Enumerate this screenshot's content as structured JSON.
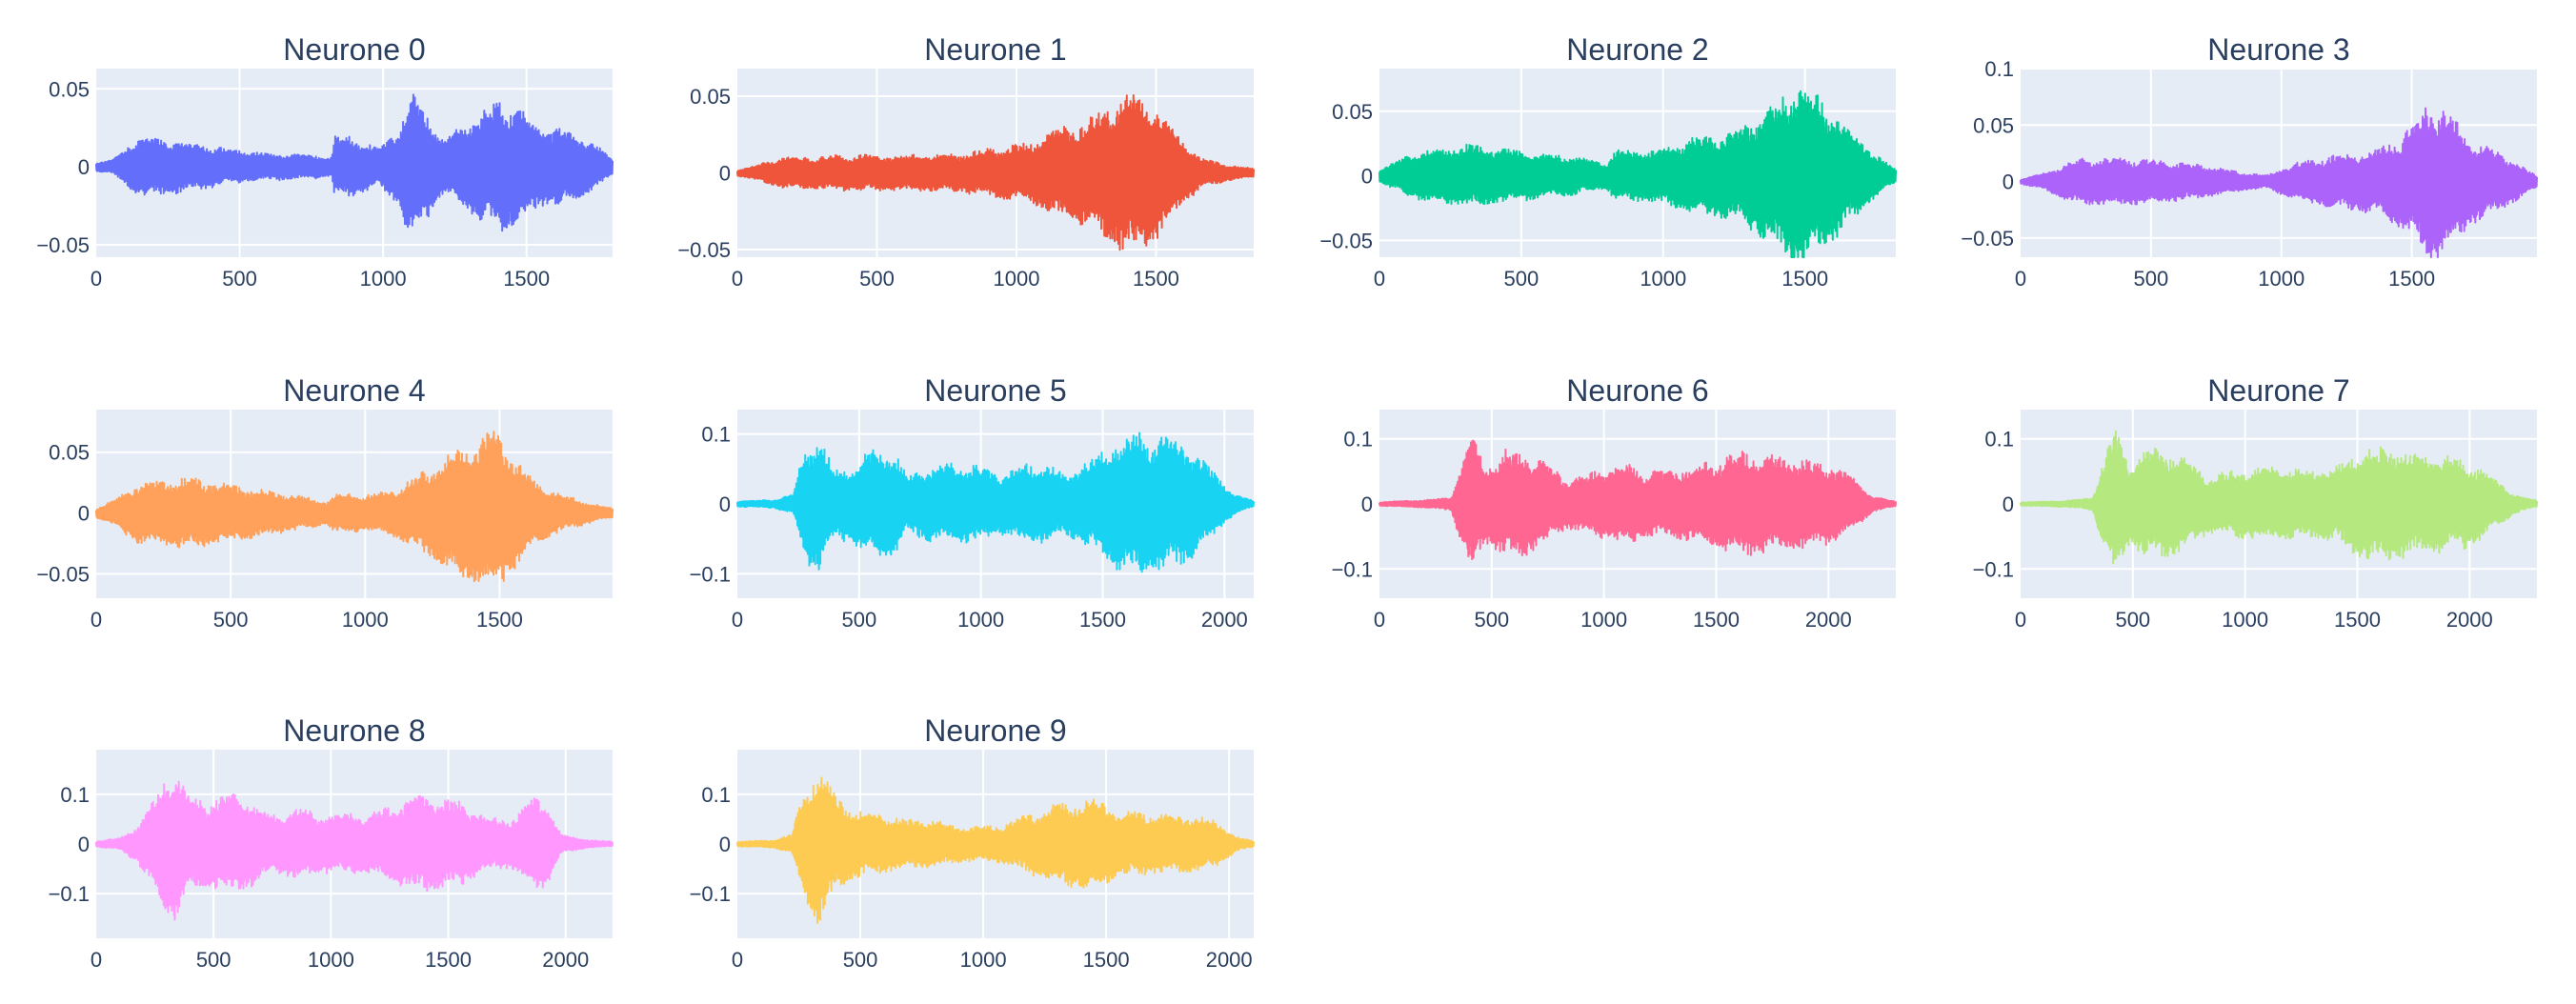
{
  "chart_data": [
    {
      "type": "line",
      "title": "Neurone 0",
      "color": "#636efa",
      "xlim": [
        0,
        1800
      ],
      "ylim": [
        -0.058,
        0.063
      ],
      "xticks": [
        0,
        500,
        1000,
        1500
      ],
      "xtick_labels": [
        "0",
        "500",
        "1000",
        "1500"
      ],
      "yticks": [
        -0.05,
        0,
        0.05
      ],
      "ytick_labels": [
        "−0.05",
        "0",
        "0.05"
      ],
      "segments": [
        [
          0,
          0.003
        ],
        [
          50,
          0.004
        ],
        [
          150,
          0.02
        ],
        [
          300,
          0.017
        ],
        [
          450,
          0.012
        ],
        [
          600,
          0.009
        ],
        [
          750,
          0.008
        ],
        [
          820,
          0.006
        ],
        [
          830,
          0.02
        ],
        [
          900,
          0.02
        ],
        [
          980,
          0.012
        ],
        [
          1050,
          0.025
        ],
        [
          1100,
          0.05
        ],
        [
          1150,
          0.035
        ],
        [
          1210,
          0.018
        ],
        [
          1260,
          0.025
        ],
        [
          1320,
          0.033
        ],
        [
          1400,
          0.044
        ],
        [
          1460,
          0.04
        ],
        [
          1540,
          0.028
        ],
        [
          1620,
          0.025
        ],
        [
          1700,
          0.02
        ],
        [
          1760,
          0.012
        ],
        [
          1800,
          0.005
        ]
      ]
    },
    {
      "type": "line",
      "title": "Neurone 1",
      "color": "#ef553b",
      "xlim": [
        0,
        1850
      ],
      "ylim": [
        -0.055,
        0.068
      ],
      "xticks": [
        0,
        500,
        1000,
        1500
      ],
      "xtick_labels": [
        "0",
        "500",
        "1000",
        "1500"
      ],
      "yticks": [
        -0.05,
        0,
        0.05
      ],
      "ytick_labels": [
        "−0.05",
        "0",
        "0.05"
      ],
      "segments": [
        [
          0,
          0.002
        ],
        [
          50,
          0.004
        ],
        [
          150,
          0.01
        ],
        [
          400,
          0.012
        ],
        [
          700,
          0.012
        ],
        [
          800,
          0.013
        ],
        [
          900,
          0.016
        ],
        [
          1050,
          0.02
        ],
        [
          1150,
          0.03
        ],
        [
          1260,
          0.036
        ],
        [
          1360,
          0.05
        ],
        [
          1420,
          0.055
        ],
        [
          1500,
          0.045
        ],
        [
          1580,
          0.025
        ],
        [
          1660,
          0.01
        ],
        [
          1760,
          0.005
        ],
        [
          1850,
          0.003
        ]
      ]
    },
    {
      "type": "line",
      "title": "Neurone 2",
      "color": "#00cc96",
      "xlim": [
        0,
        1820
      ],
      "ylim": [
        -0.063,
        0.083
      ],
      "xticks": [
        0,
        500,
        1000,
        1500
      ],
      "xtick_labels": [
        "0",
        "500",
        "1000",
        "1500"
      ],
      "yticks": [
        -0.05,
        0,
        0.05
      ],
      "ytick_labels": [
        "−0.05",
        "0",
        "0.05"
      ],
      "segments": [
        [
          0,
          0.005
        ],
        [
          60,
          0.012
        ],
        [
          150,
          0.02
        ],
        [
          300,
          0.025
        ],
        [
          500,
          0.02
        ],
        [
          700,
          0.015
        ],
        [
          800,
          0.01
        ],
        [
          830,
          0.02
        ],
        [
          950,
          0.02
        ],
        [
          1100,
          0.03
        ],
        [
          1250,
          0.035
        ],
        [
          1350,
          0.05
        ],
        [
          1480,
          0.075
        ],
        [
          1560,
          0.06
        ],
        [
          1650,
          0.04
        ],
        [
          1760,
          0.015
        ],
        [
          1820,
          0.005
        ]
      ]
    },
    {
      "type": "line",
      "title": "Neurone 3",
      "color": "#ab63fa",
      "xlim": [
        0,
        1980
      ],
      "ylim": [
        -0.067,
        0.1
      ],
      "xticks": [
        0,
        500,
        1000,
        1500
      ],
      "xtick_labels": [
        "0",
        "500",
        "1000",
        "1500"
      ],
      "yticks": [
        -0.05,
        0,
        0.05,
        0.1
      ],
      "ytick_labels": [
        "−0.05",
        "0",
        "0.05",
        "0.1"
      ],
      "segments": [
        [
          0,
          0.002
        ],
        [
          100,
          0.008
        ],
        [
          200,
          0.02
        ],
        [
          350,
          0.022
        ],
        [
          500,
          0.02
        ],
        [
          700,
          0.015
        ],
        [
          850,
          0.008
        ],
        [
          950,
          0.006
        ],
        [
          1000,
          0.012
        ],
        [
          1100,
          0.02
        ],
        [
          1250,
          0.025
        ],
        [
          1380,
          0.03
        ],
        [
          1500,
          0.05
        ],
        [
          1570,
          0.075
        ],
        [
          1650,
          0.06
        ],
        [
          1720,
          0.04
        ],
        [
          1800,
          0.03
        ],
        [
          1880,
          0.02
        ],
        [
          1980,
          0.005
        ]
      ]
    },
    {
      "type": "line",
      "title": "Neurone 4",
      "color": "#ffa15a",
      "xlim": [
        0,
        1920
      ],
      "ylim": [
        -0.07,
        0.085
      ],
      "xticks": [
        0,
        500,
        1000,
        1500
      ],
      "xtick_labels": [
        "0",
        "500",
        "1000",
        "1500"
      ],
      "yticks": [
        -0.05,
        0,
        0.05
      ],
      "ytick_labels": [
        "−0.05",
        "0",
        "0.05"
      ],
      "segments": [
        [
          0,
          0.004
        ],
        [
          60,
          0.01
        ],
        [
          150,
          0.025
        ],
        [
          350,
          0.03
        ],
        [
          550,
          0.022
        ],
        [
          750,
          0.015
        ],
        [
          850,
          0.01
        ],
        [
          900,
          0.018
        ],
        [
          1000,
          0.015
        ],
        [
          1100,
          0.02
        ],
        [
          1220,
          0.035
        ],
        [
          1300,
          0.048
        ],
        [
          1400,
          0.06
        ],
        [
          1480,
          0.07
        ],
        [
          1560,
          0.045
        ],
        [
          1640,
          0.025
        ],
        [
          1740,
          0.015
        ],
        [
          1840,
          0.008
        ],
        [
          1920,
          0.004
        ]
      ]
    },
    {
      "type": "line",
      "title": "Neurone 5",
      "color": "#19d3f3",
      "xlim": [
        0,
        2120
      ],
      "ylim": [
        -0.135,
        0.135
      ],
      "xticks": [
        0,
        500,
        1000,
        1500,
        2000
      ],
      "xtick_labels": [
        "0",
        "500",
        "1000",
        "1500",
        "2000"
      ],
      "yticks": [
        -0.1,
        0,
        0.1
      ],
      "ytick_labels": [
        "−0.1",
        "0",
        "0.1"
      ],
      "segments": [
        [
          0,
          0.004
        ],
        [
          150,
          0.006
        ],
        [
          230,
          0.015
        ],
        [
          280,
          0.09
        ],
        [
          330,
          0.1
        ],
        [
          400,
          0.05
        ],
        [
          480,
          0.06
        ],
        [
          550,
          0.08
        ],
        [
          640,
          0.08
        ],
        [
          700,
          0.04
        ],
        [
          780,
          0.055
        ],
        [
          900,
          0.06
        ],
        [
          1000,
          0.055
        ],
        [
          1080,
          0.045
        ],
        [
          1200,
          0.06
        ],
        [
          1280,
          0.055
        ],
        [
          1350,
          0.045
        ],
        [
          1450,
          0.065
        ],
        [
          1550,
          0.095
        ],
        [
          1650,
          0.105
        ],
        [
          1750,
          0.1
        ],
        [
          1850,
          0.085
        ],
        [
          1950,
          0.05
        ],
        [
          2040,
          0.015
        ],
        [
          2120,
          0.004
        ]
      ]
    },
    {
      "type": "line",
      "title": "Neurone 6",
      "color": "#ff6692",
      "xlim": [
        0,
        2300
      ],
      "ylim": [
        -0.145,
        0.145
      ],
      "xticks": [
        0,
        500,
        1000,
        1500,
        2000
      ],
      "xtick_labels": [
        "0",
        "500",
        "1000",
        "1500",
        "2000"
      ],
      "yticks": [
        -0.1,
        0,
        0.1
      ],
      "ytick_labels": [
        "−0.1",
        "0",
        "0.1"
      ],
      "segments": [
        [
          0,
          0.003
        ],
        [
          200,
          0.006
        ],
        [
          320,
          0.01
        ],
        [
          350,
          0.05
        ],
        [
          410,
          0.115
        ],
        [
          470,
          0.06
        ],
        [
          560,
          0.085
        ],
        [
          660,
          0.08
        ],
        [
          760,
          0.06
        ],
        [
          830,
          0.04
        ],
        [
          900,
          0.045
        ],
        [
          1000,
          0.055
        ],
        [
          1100,
          0.065
        ],
        [
          1200,
          0.05
        ],
        [
          1300,
          0.055
        ],
        [
          1400,
          0.06
        ],
        [
          1500,
          0.07
        ],
        [
          1600,
          0.082
        ],
        [
          1700,
          0.08
        ],
        [
          1800,
          0.075
        ],
        [
          1900,
          0.07
        ],
        [
          2000,
          0.065
        ],
        [
          2100,
          0.045
        ],
        [
          2200,
          0.012
        ],
        [
          2300,
          0.004
        ]
      ]
    },
    {
      "type": "line",
      "title": "Neurone 7",
      "color": "#b6e880",
      "xlim": [
        0,
        2300
      ],
      "ylim": [
        -0.145,
        0.145
      ],
      "xticks": [
        0,
        500,
        1000,
        1500,
        2000
      ],
      "xtick_labels": [
        "0",
        "500",
        "1000",
        "1500",
        "2000"
      ],
      "yticks": [
        -0.1,
        0,
        0.1
      ],
      "ytick_labels": [
        "−0.1",
        "0",
        "0.1"
      ],
      "segments": [
        [
          0,
          0.003
        ],
        [
          200,
          0.005
        ],
        [
          320,
          0.01
        ],
        [
          360,
          0.06
        ],
        [
          420,
          0.12
        ],
        [
          480,
          0.065
        ],
        [
          560,
          0.085
        ],
        [
          640,
          0.09
        ],
        [
          740,
          0.07
        ],
        [
          840,
          0.045
        ],
        [
          920,
          0.05
        ],
        [
          1000,
          0.055
        ],
        [
          1100,
          0.06
        ],
        [
          1200,
          0.055
        ],
        [
          1300,
          0.055
        ],
        [
          1400,
          0.06
        ],
        [
          1500,
          0.085
        ],
        [
          1600,
          0.09
        ],
        [
          1700,
          0.085
        ],
        [
          1800,
          0.08
        ],
        [
          1900,
          0.075
        ],
        [
          2000,
          0.07
        ],
        [
          2100,
          0.045
        ],
        [
          2200,
          0.015
        ],
        [
          2300,
          0.005
        ]
      ]
    },
    {
      "type": "line",
      "title": "Neurone 8",
      "color": "#ff97ff",
      "xlim": [
        0,
        2200
      ],
      "ylim": [
        -0.19,
        0.19
      ],
      "xticks": [
        0,
        500,
        1000,
        1500,
        2000
      ],
      "xtick_labels": [
        "0",
        "500",
        "1000",
        "1500",
        "2000"
      ],
      "yticks": [
        -0.1,
        0,
        0.1
      ],
      "ytick_labels": [
        "−0.1",
        "0",
        "0.1"
      ],
      "segments": [
        [
          0,
          0.006
        ],
        [
          100,
          0.012
        ],
        [
          180,
          0.04
        ],
        [
          250,
          0.1
        ],
        [
          330,
          0.165
        ],
        [
          400,
          0.1
        ],
        [
          480,
          0.09
        ],
        [
          580,
          0.105
        ],
        [
          660,
          0.09
        ],
        [
          760,
          0.06
        ],
        [
          860,
          0.075
        ],
        [
          960,
          0.06
        ],
        [
          1060,
          0.065
        ],
        [
          1160,
          0.06
        ],
        [
          1260,
          0.08
        ],
        [
          1360,
          0.1
        ],
        [
          1460,
          0.095
        ],
        [
          1560,
          0.085
        ],
        [
          1660,
          0.055
        ],
        [
          1760,
          0.05
        ],
        [
          1860,
          0.095
        ],
        [
          1920,
          0.09
        ],
        [
          1980,
          0.02
        ],
        [
          2100,
          0.008
        ],
        [
          2200,
          0.005
        ]
      ]
    },
    {
      "type": "line",
      "title": "Neurone 9",
      "color": "#fecb52",
      "xlim": [
        0,
        2100
      ],
      "ylim": [
        -0.19,
        0.19
      ],
      "xticks": [
        0,
        500,
        1000,
        1500,
        2000
      ],
      "xtick_labels": [
        "0",
        "500",
        "1000",
        "1500",
        "2000"
      ],
      "yticks": [
        -0.1,
        0,
        0.1
      ],
      "ytick_labels": [
        "−0.1",
        "0",
        "0.1"
      ],
      "segments": [
        [
          0,
          0.005
        ],
        [
          150,
          0.008
        ],
        [
          220,
          0.02
        ],
        [
          260,
          0.1
        ],
        [
          330,
          0.165
        ],
        [
          400,
          0.1
        ],
        [
          480,
          0.07
        ],
        [
          580,
          0.06
        ],
        [
          700,
          0.05
        ],
        [
          800,
          0.05
        ],
        [
          880,
          0.04
        ],
        [
          980,
          0.035
        ],
        [
          1080,
          0.04
        ],
        [
          1200,
          0.065
        ],
        [
          1300,
          0.085
        ],
        [
          1400,
          0.09
        ],
        [
          1460,
          0.095
        ],
        [
          1540,
          0.07
        ],
        [
          1640,
          0.065
        ],
        [
          1740,
          0.06
        ],
        [
          1840,
          0.06
        ],
        [
          1940,
          0.05
        ],
        [
          2030,
          0.015
        ],
        [
          2100,
          0.006
        ]
      ]
    }
  ]
}
